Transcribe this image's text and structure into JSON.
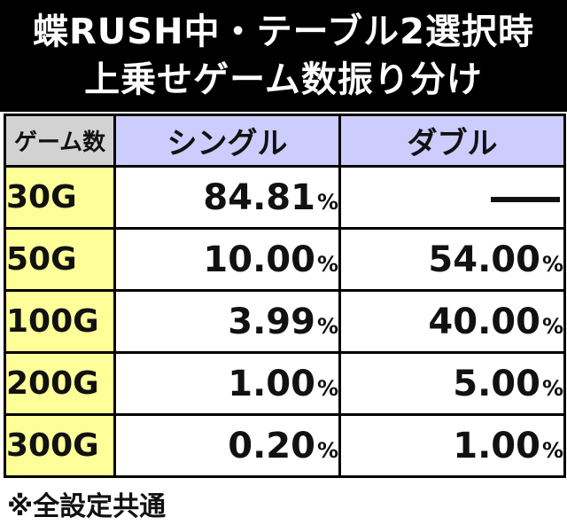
{
  "title": {
    "line1": "蝶RUSH中・テーブル2選択時",
    "line2": "上乗せゲーム数振り分け"
  },
  "table": {
    "corner_label": "ゲーム数",
    "columns": [
      "シングル",
      "ダブル"
    ],
    "percent_sign": "%",
    "rows": [
      {
        "label": "30G",
        "single": "84.81",
        "double": "—"
      },
      {
        "label": "50G",
        "single": "10.00",
        "double": "54.00"
      },
      {
        "label": "100G",
        "single": "3.99",
        "double": "40.00"
      },
      {
        "label": "200G",
        "single": "1.00",
        "double": "5.00"
      },
      {
        "label": "300G",
        "single": "0.20",
        "double": "1.00"
      }
    ]
  },
  "footnote": "※全設定共通",
  "colors": {
    "title_bg": "#000000",
    "corner_bg": "#d2d2d2",
    "header_bg": "#ccccff",
    "rowhead_bg": "#ffff99"
  }
}
